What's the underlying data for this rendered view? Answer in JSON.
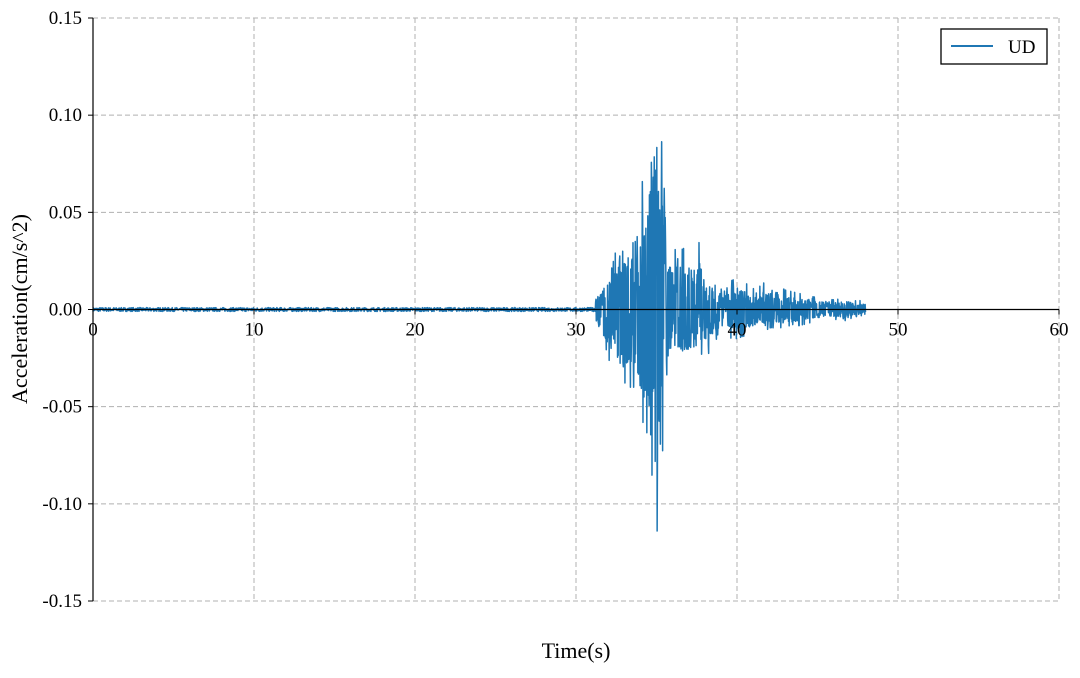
{
  "chart_data": {
    "type": "line",
    "title": "",
    "xlabel": "Time(s)",
    "ylabel": "Acceleration(cm/s^2)",
    "xlim": [
      0,
      60
    ],
    "ylim": [
      -0.15,
      0.15
    ],
    "xticks": [
      0,
      10,
      20,
      30,
      40,
      50,
      60
    ],
    "xtick_labels": [
      "0",
      "10",
      "20",
      "30",
      "40",
      "50",
      "60"
    ],
    "yticks": [
      0.15,
      0.1,
      0.05,
      0.0,
      -0.05,
      -0.1,
      -0.15
    ],
    "ytick_labels": [
      "0.15",
      "0.10",
      "0.05",
      "0.00",
      "-0.05",
      "-0.10",
      "-0.15"
    ],
    "grid": true,
    "legend_placement": "top-right",
    "series": [
      {
        "name": "UD",
        "color": "#1f77b4",
        "time_range": [
          0,
          48
        ],
        "pre_event_amplitude": 0.001,
        "envelope": {
          "t": [
            31.2,
            31.5,
            32.0,
            32.5,
            33.0,
            33.3,
            33.6,
            34.0,
            34.5,
            34.8,
            35.1,
            35.4,
            35.7,
            36.2,
            36.5,
            37.0,
            37.5,
            38.0,
            38.5,
            39.0,
            39.5,
            40.0,
            41.0,
            42.0,
            43.0,
            44.0,
            45.0,
            46.0,
            47.0,
            47.9
          ],
          "max": [
            0.008,
            0.012,
            0.022,
            0.03,
            0.035,
            0.055,
            0.03,
            0.055,
            0.1,
            0.127,
            0.105,
            0.08,
            0.04,
            0.03,
            0.035,
            0.025,
            0.04,
            0.02,
            0.016,
            0.012,
            0.018,
            0.015,
            0.012,
            0.015,
            0.01,
            0.008,
            0.006,
            0.005,
            0.006,
            0.004
          ],
          "min": [
            -0.008,
            -0.015,
            -0.025,
            -0.035,
            -0.045,
            -0.04,
            -0.04,
            -0.06,
            -0.1,
            -0.13,
            -0.11,
            -0.07,
            -0.04,
            -0.03,
            -0.035,
            -0.03,
            -0.02,
            -0.025,
            -0.02,
            -0.012,
            -0.015,
            -0.015,
            -0.012,
            -0.01,
            -0.01,
            -0.008,
            -0.006,
            -0.005,
            -0.006,
            -0.003
          ]
        }
      }
    ]
  }
}
